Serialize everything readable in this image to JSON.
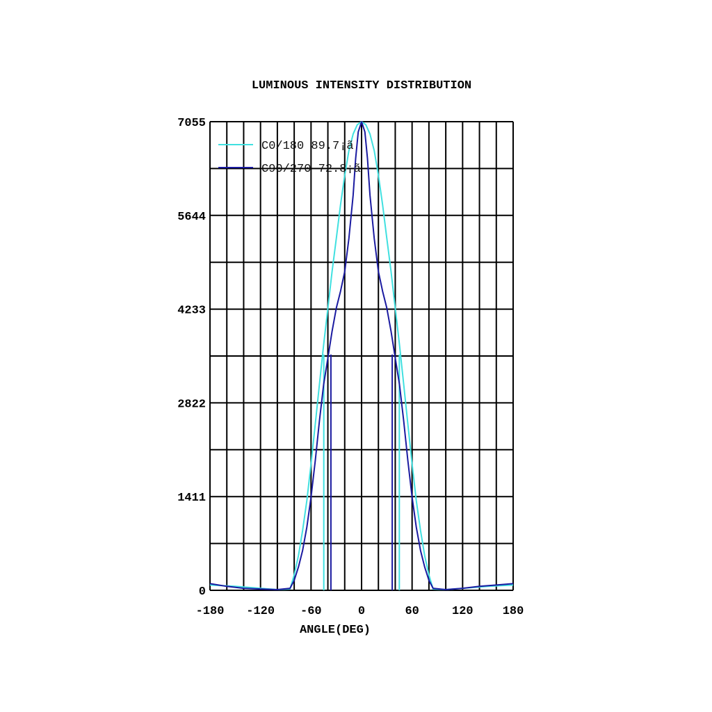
{
  "chart_data": {
    "type": "line",
    "title": "LUMINOUS INTENSITY DISTRIBUTION",
    "xlabel": "ANGLE(DEG)",
    "ylabel": "",
    "xlim": [
      -180,
      180
    ],
    "ylim": [
      0,
      7055
    ],
    "x_ticks": [
      -180,
      -120,
      -60,
      0,
      60,
      120,
      180
    ],
    "y_ticks": [
      0,
      1411,
      2822,
      4233,
      5644,
      7055
    ],
    "grid": true,
    "legend_position": "top-left",
    "series": [
      {
        "name": "C0/180 89.7¡ã",
        "color": "#40e0e0",
        "points": [
          [
            -180,
            80
          ],
          [
            -150,
            60
          ],
          [
            -120,
            30
          ],
          [
            -100,
            10
          ],
          [
            -85,
            20
          ],
          [
            -80,
            230
          ],
          [
            -75,
            520
          ],
          [
            -70,
            900
          ],
          [
            -65,
            1350
          ],
          [
            -60,
            1900
          ],
          [
            -55,
            2500
          ],
          [
            -50,
            3100
          ],
          [
            -45,
            3700
          ],
          [
            -40,
            4250
          ],
          [
            -35,
            4800
          ],
          [
            -30,
            5300
          ],
          [
            -25,
            5800
          ],
          [
            -20,
            6250
          ],
          [
            -15,
            6620
          ],
          [
            -10,
            6870
          ],
          [
            -5,
            7010
          ],
          [
            0,
            7055
          ],
          [
            5,
            7010
          ],
          [
            10,
            6870
          ],
          [
            15,
            6620
          ],
          [
            20,
            6250
          ],
          [
            25,
            5800
          ],
          [
            30,
            5300
          ],
          [
            35,
            4800
          ],
          [
            40,
            4250
          ],
          [
            45,
            3700
          ],
          [
            50,
            3100
          ],
          [
            55,
            2500
          ],
          [
            60,
            1900
          ],
          [
            65,
            1350
          ],
          [
            70,
            900
          ],
          [
            75,
            520
          ],
          [
            80,
            230
          ],
          [
            85,
            20
          ],
          [
            100,
            10
          ],
          [
            120,
            30
          ],
          [
            150,
            60
          ],
          [
            180,
            80
          ]
        ]
      },
      {
        "name": "C90/270 72.8¡ã",
        "color": "#1a1aa0",
        "points": [
          [
            -180,
            100
          ],
          [
            -160,
            60
          ],
          [
            -140,
            30
          ],
          [
            -120,
            20
          ],
          [
            -100,
            10
          ],
          [
            -85,
            30
          ],
          [
            -80,
            150
          ],
          [
            -75,
            350
          ],
          [
            -70,
            600
          ],
          [
            -65,
            950
          ],
          [
            -60,
            1400
          ],
          [
            -55,
            1950
          ],
          [
            -50,
            2550
          ],
          [
            -45,
            3100
          ],
          [
            -40,
            3500
          ],
          [
            -35,
            3900
          ],
          [
            -30,
            4250
          ],
          [
            -25,
            4500
          ],
          [
            -20,
            4800
          ],
          [
            -15,
            5300
          ],
          [
            -10,
            5950
          ],
          [
            -7,
            6500
          ],
          [
            -4,
            6900
          ],
          [
            0,
            7055
          ],
          [
            4,
            6900
          ],
          [
            7,
            6500
          ],
          [
            10,
            5950
          ],
          [
            15,
            5300
          ],
          [
            20,
            4800
          ],
          [
            25,
            4500
          ],
          [
            30,
            4250
          ],
          [
            35,
            3900
          ],
          [
            40,
            3500
          ],
          [
            45,
            3100
          ],
          [
            50,
            2550
          ],
          [
            55,
            1950
          ],
          [
            60,
            1400
          ],
          [
            65,
            950
          ],
          [
            70,
            600
          ],
          [
            75,
            350
          ],
          [
            80,
            150
          ],
          [
            85,
            30
          ],
          [
            100,
            10
          ],
          [
            120,
            30
          ],
          [
            140,
            60
          ],
          [
            160,
            80
          ],
          [
            180,
            100
          ]
        ]
      }
    ],
    "beam_angle_markers": [
      {
        "series": "C0/180 89.7¡ã",
        "x": [
          -44.85,
          44.85
        ]
      },
      {
        "series": "C90/270 72.8¡ã",
        "x": [
          -36.4,
          36.4
        ]
      }
    ]
  }
}
